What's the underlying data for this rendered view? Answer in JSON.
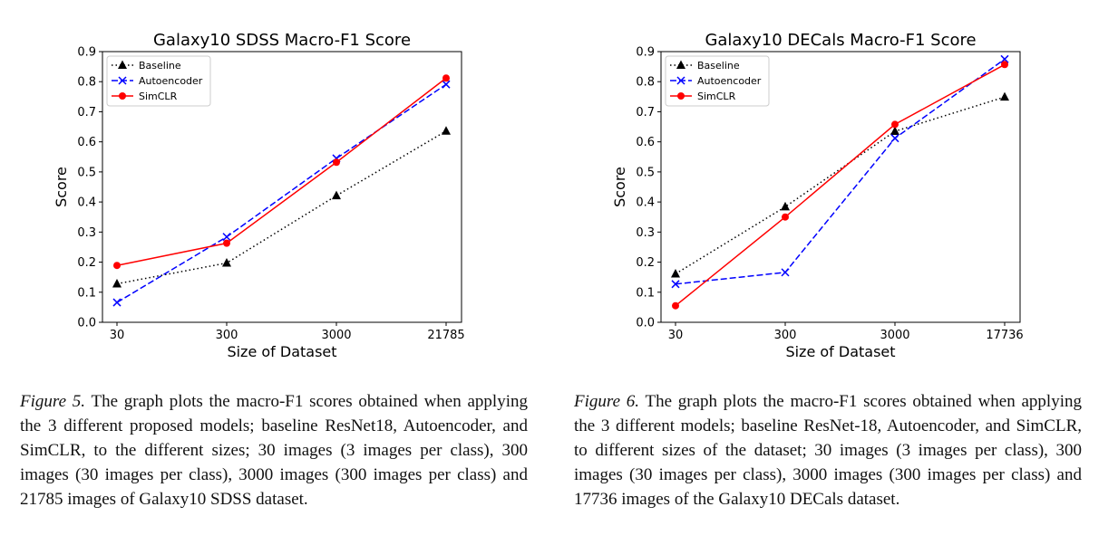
{
  "chart_data": [
    {
      "type": "line",
      "title": "Galaxy10 SDSS Macro-F1 Score",
      "xlabel": "Size of Dataset",
      "ylabel": "Score",
      "categories": [
        "30",
        "300",
        "3000",
        "21785"
      ],
      "ylim": [
        0,
        0.9
      ],
      "yticks": [
        "0.0",
        "0.1",
        "0.2",
        "0.3",
        "0.4",
        "0.5",
        "0.6",
        "0.7",
        "0.8",
        "0.9"
      ],
      "legend": "top-left",
      "grid": false,
      "series": [
        {
          "name": "Baseline",
          "values": [
            0.128,
            0.197,
            0.421,
            0.636
          ],
          "color": "#000000",
          "dash": "dotted",
          "marker": "triangle"
        },
        {
          "name": "Autoencoder",
          "values": [
            0.066,
            0.284,
            0.545,
            0.791
          ],
          "color": "#0000ff",
          "dash": "dashed",
          "marker": "x"
        },
        {
          "name": "SimCLR",
          "values": [
            0.189,
            0.263,
            0.532,
            0.812
          ],
          "color": "#ff0000",
          "dash": "solid",
          "marker": "circle"
        }
      ]
    },
    {
      "type": "line",
      "title": "Galaxy10 DECals Macro-F1 Score",
      "xlabel": "Size of Dataset",
      "ylabel": "Score",
      "categories": [
        "30",
        "300",
        "3000",
        "17736"
      ],
      "ylim": [
        0,
        0.9
      ],
      "yticks": [
        "0.0",
        "0.1",
        "0.2",
        "0.3",
        "0.4",
        "0.5",
        "0.6",
        "0.7",
        "0.8",
        "0.9"
      ],
      "legend": "top-left",
      "grid": false,
      "series": [
        {
          "name": "Baseline",
          "values": [
            0.161,
            0.384,
            0.635,
            0.749
          ],
          "color": "#000000",
          "dash": "dotted",
          "marker": "triangle"
        },
        {
          "name": "Autoencoder",
          "values": [
            0.127,
            0.166,
            0.612,
            0.875
          ],
          "color": "#0000ff",
          "dash": "dashed",
          "marker": "x"
        },
        {
          "name": "SimCLR",
          "values": [
            0.055,
            0.35,
            0.658,
            0.857
          ],
          "color": "#ff0000",
          "dash": "solid",
          "marker": "circle"
        }
      ]
    }
  ],
  "captions": [
    {
      "label": "Figure 5.",
      "text": "The graph plots the macro-F1 scores obtained when applying the 3 different proposed models; baseline ResNet18, Autoencoder, and SimCLR, to the different sizes; 30 images (3 images per class), 300 images (30 images per class), 3000 images (300 images per class) and 21785 images of Galaxy10 SDSS dataset."
    },
    {
      "label": "Figure 6.",
      "text": "The graph plots the macro-F1 scores obtained when applying the 3 different models; baseline ResNet-18, Autoencoder, and SimCLR, to different sizes of the dataset; 30 images (3 images per class), 300 images (30 images per class), 3000 images (300 images per class) and 17736 images of the Galaxy10 DECals dataset."
    }
  ]
}
